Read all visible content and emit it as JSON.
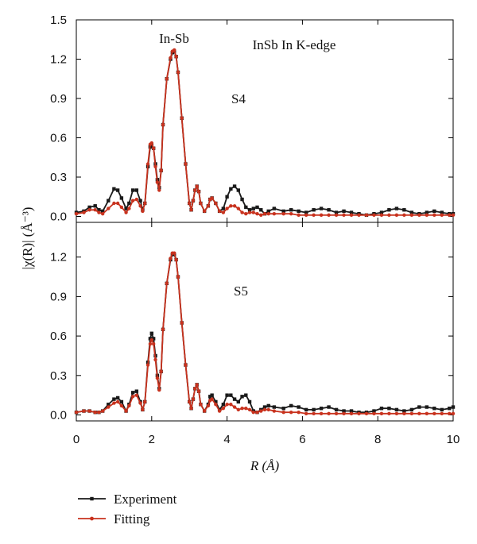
{
  "chart_data": {
    "type": "line",
    "xlabel": "R (Å)",
    "ylabel": "|χ(R)| (Å⁻³)",
    "xlim": [
      0,
      10
    ],
    "x_ticks": [
      "0",
      "2",
      "4",
      "6",
      "8",
      "10"
    ],
    "legend": {
      "placement": "bottom-left",
      "entries": [
        {
          "label": "Experiment",
          "color": "#1a1a1a"
        },
        {
          "label": "Fitting",
          "color": "#c8321e"
        }
      ]
    },
    "colors": {
      "experiment": "#1a1a1a",
      "fitting": "#c8321e"
    },
    "panels": [
      {
        "ylim": [
          0,
          1.5
        ],
        "y_ticks": [
          "0.0",
          "0.3",
          "0.6",
          "0.9",
          "1.2",
          "1.5"
        ],
        "annotations": [
          "In-Sb",
          "InSb In K-edge",
          "S4"
        ],
        "series": [
          {
            "name": "Experiment",
            "x": [
              0,
              0.2,
              0.35,
              0.5,
              0.6,
              0.7,
              0.85,
              1.0,
              1.1,
              1.2,
              1.32,
              1.4,
              1.5,
              1.6,
              1.7,
              1.76,
              1.82,
              1.9,
              1.96,
              2.0,
              2.05,
              2.1,
              2.15,
              2.2,
              2.25,
              2.3,
              2.4,
              2.5,
              2.55,
              2.6,
              2.65,
              2.7,
              2.8,
              2.9,
              3.0,
              3.05,
              3.1,
              3.15,
              3.2,
              3.25,
              3.3,
              3.4,
              3.5,
              3.55,
              3.6,
              3.7,
              3.8,
              3.9,
              4.0,
              4.1,
              4.2,
              4.3,
              4.4,
              4.5,
              4.6,
              4.7,
              4.8,
              4.9,
              5.0,
              5.1,
              5.25,
              5.5,
              5.7,
              5.9,
              6.1,
              6.3,
              6.5,
              6.7,
              6.9,
              7.1,
              7.3,
              7.5,
              7.7,
              7.9,
              8.1,
              8.3,
              8.5,
              8.7,
              8.9,
              9.1,
              9.3,
              9.5,
              9.7,
              9.9,
              10
            ],
            "y": [
              0.03,
              0.04,
              0.07,
              0.08,
              0.05,
              0.04,
              0.12,
              0.21,
              0.2,
              0.14,
              0.06,
              0.1,
              0.2,
              0.2,
              0.12,
              0.05,
              0.1,
              0.38,
              0.53,
              0.55,
              0.52,
              0.4,
              0.28,
              0.22,
              0.35,
              0.7,
              1.05,
              1.2,
              1.25,
              1.26,
              1.22,
              1.1,
              0.75,
              0.4,
              0.1,
              0.05,
              0.12,
              0.2,
              0.23,
              0.19,
              0.1,
              0.04,
              0.08,
              0.13,
              0.14,
              0.1,
              0.04,
              0.06,
              0.15,
              0.21,
              0.23,
              0.2,
              0.13,
              0.07,
              0.05,
              0.06,
              0.07,
              0.05,
              0.02,
              0.04,
              0.06,
              0.04,
              0.05,
              0.04,
              0.03,
              0.05,
              0.06,
              0.05,
              0.03,
              0.04,
              0.03,
              0.02,
              0.01,
              0.02,
              0.03,
              0.05,
              0.06,
              0.05,
              0.03,
              0.02,
              0.03,
              0.04,
              0.03,
              0.02,
              0.02
            ]
          },
          {
            "name": "Fitting",
            "x": [
              0,
              0.2,
              0.35,
              0.5,
              0.6,
              0.7,
              0.85,
              1.0,
              1.1,
              1.2,
              1.32,
              1.4,
              1.5,
              1.6,
              1.7,
              1.76,
              1.82,
              1.9,
              1.96,
              2.0,
              2.05,
              2.1,
              2.15,
              2.2,
              2.25,
              2.3,
              2.4,
              2.5,
              2.55,
              2.6,
              2.65,
              2.7,
              2.8,
              2.9,
              3.0,
              3.05,
              3.1,
              3.15,
              3.2,
              3.25,
              3.3,
              3.4,
              3.5,
              3.55,
              3.6,
              3.7,
              3.8,
              3.9,
              4.0,
              4.1,
              4.2,
              4.3,
              4.4,
              4.5,
              4.6,
              4.7,
              4.8,
              4.9,
              5.0,
              5.1,
              5.25,
              5.5,
              5.7,
              5.9,
              6.1,
              6.3,
              6.5,
              6.7,
              6.9,
              7.1,
              7.3,
              7.5,
              7.7,
              7.9,
              8.1,
              8.3,
              8.5,
              8.7,
              8.9,
              9.1,
              9.3,
              9.5,
              9.7,
              9.9,
              10
            ],
            "y": [
              0.02,
              0.03,
              0.05,
              0.05,
              0.03,
              0.02,
              0.06,
              0.1,
              0.1,
              0.07,
              0.03,
              0.06,
              0.12,
              0.13,
              0.08,
              0.04,
              0.1,
              0.4,
              0.55,
              0.56,
              0.52,
              0.38,
              0.26,
              0.2,
              0.35,
              0.7,
              1.05,
              1.21,
              1.26,
              1.27,
              1.22,
              1.1,
              0.75,
              0.4,
              0.1,
              0.05,
              0.12,
              0.2,
              0.23,
              0.19,
              0.1,
              0.04,
              0.08,
              0.13,
              0.14,
              0.1,
              0.04,
              0.03,
              0.06,
              0.08,
              0.08,
              0.06,
              0.03,
              0.02,
              0.03,
              0.03,
              0.02,
              0.01,
              0.02,
              0.02,
              0.02,
              0.02,
              0.02,
              0.01,
              0.01,
              0.01,
              0.01,
              0.01,
              0.01,
              0.01,
              0.01,
              0.01,
              0.01,
              0.01,
              0.01,
              0.01,
              0.01,
              0.01,
              0.01,
              0.01,
              0.01,
              0.01,
              0.01,
              0.01,
              0.01
            ]
          }
        ]
      },
      {
        "ylim": [
          0,
          1.5
        ],
        "y_ticks": [
          "0.0",
          "0.3",
          "0.6",
          "0.9",
          "1.2"
        ],
        "annotations": [
          "S5"
        ],
        "series": [
          {
            "name": "Experiment",
            "x": [
              0,
              0.2,
              0.35,
              0.5,
              0.6,
              0.7,
              0.85,
              1.0,
              1.1,
              1.2,
              1.32,
              1.4,
              1.5,
              1.6,
              1.7,
              1.76,
              1.82,
              1.9,
              1.96,
              2.0,
              2.05,
              2.1,
              2.15,
              2.2,
              2.25,
              2.3,
              2.4,
              2.5,
              2.55,
              2.6,
              2.65,
              2.7,
              2.8,
              2.9,
              3.0,
              3.05,
              3.1,
              3.15,
              3.2,
              3.25,
              3.3,
              3.4,
              3.5,
              3.55,
              3.6,
              3.7,
              3.8,
              3.9,
              4.0,
              4.1,
              4.2,
              4.3,
              4.4,
              4.5,
              4.6,
              4.7,
              4.8,
              4.9,
              5.0,
              5.1,
              5.25,
              5.5,
              5.7,
              5.9,
              6.1,
              6.3,
              6.5,
              6.7,
              6.9,
              7.1,
              7.3,
              7.5,
              7.7,
              7.9,
              8.1,
              8.3,
              8.5,
              8.7,
              8.9,
              9.1,
              9.3,
              9.5,
              9.7,
              9.9,
              10
            ],
            "y": [
              0.02,
              0.03,
              0.03,
              0.02,
              0.02,
              0.03,
              0.08,
              0.12,
              0.13,
              0.1,
              0.03,
              0.08,
              0.17,
              0.18,
              0.1,
              0.04,
              0.1,
              0.4,
              0.58,
              0.62,
              0.58,
              0.45,
              0.3,
              0.2,
              0.33,
              0.65,
              1.0,
              1.18,
              1.22,
              1.22,
              1.18,
              1.05,
              0.7,
              0.38,
              0.1,
              0.05,
              0.12,
              0.2,
              0.23,
              0.18,
              0.08,
              0.03,
              0.08,
              0.14,
              0.15,
              0.1,
              0.04,
              0.08,
              0.15,
              0.15,
              0.12,
              0.1,
              0.14,
              0.15,
              0.1,
              0.03,
              0.02,
              0.04,
              0.06,
              0.07,
              0.06,
              0.05,
              0.07,
              0.06,
              0.04,
              0.04,
              0.05,
              0.06,
              0.04,
              0.03,
              0.03,
              0.02,
              0.02,
              0.03,
              0.05,
              0.05,
              0.04,
              0.03,
              0.04,
              0.06,
              0.06,
              0.05,
              0.04,
              0.05,
              0.06
            ]
          },
          {
            "name": "Fitting",
            "x": [
              0,
              0.2,
              0.35,
              0.5,
              0.6,
              0.7,
              0.85,
              1.0,
              1.1,
              1.2,
              1.32,
              1.4,
              1.5,
              1.6,
              1.7,
              1.76,
              1.82,
              1.9,
              1.96,
              2.0,
              2.05,
              2.1,
              2.15,
              2.2,
              2.25,
              2.3,
              2.4,
              2.5,
              2.55,
              2.6,
              2.65,
              2.7,
              2.8,
              2.9,
              3.0,
              3.05,
              3.1,
              3.15,
              3.2,
              3.25,
              3.3,
              3.4,
              3.5,
              3.55,
              3.6,
              3.7,
              3.8,
              3.9,
              4.0,
              4.1,
              4.2,
              4.3,
              4.4,
              4.5,
              4.6,
              4.7,
              4.8,
              4.9,
              5.0,
              5.1,
              5.25,
              5.5,
              5.7,
              5.9,
              6.1,
              6.3,
              6.5,
              6.7,
              6.9,
              7.1,
              7.3,
              7.5,
              7.7,
              7.9,
              8.1,
              8.3,
              8.5,
              8.7,
              8.9,
              9.1,
              9.3,
              9.5,
              9.7,
              9.9,
              10
            ],
            "y": [
              0.02,
              0.03,
              0.03,
              0.02,
              0.02,
              0.03,
              0.06,
              0.09,
              0.1,
              0.07,
              0.03,
              0.07,
              0.14,
              0.15,
              0.09,
              0.04,
              0.1,
              0.38,
              0.54,
              0.57,
              0.54,
              0.42,
              0.28,
              0.19,
              0.33,
              0.65,
              1.0,
              1.19,
              1.23,
              1.23,
              1.18,
              1.05,
              0.7,
              0.38,
              0.1,
              0.05,
              0.12,
              0.2,
              0.23,
              0.18,
              0.08,
              0.03,
              0.07,
              0.11,
              0.12,
              0.08,
              0.03,
              0.05,
              0.08,
              0.08,
              0.06,
              0.04,
              0.05,
              0.05,
              0.04,
              0.02,
              0.02,
              0.03,
              0.04,
              0.04,
              0.03,
              0.02,
              0.02,
              0.02,
              0.01,
              0.01,
              0.01,
              0.01,
              0.01,
              0.01,
              0.01,
              0.01,
              0.01,
              0.01,
              0.01,
              0.01,
              0.01,
              0.01,
              0.01,
              0.01,
              0.01,
              0.01,
              0.01,
              0.01,
              0.01
            ]
          }
        ]
      }
    ]
  }
}
